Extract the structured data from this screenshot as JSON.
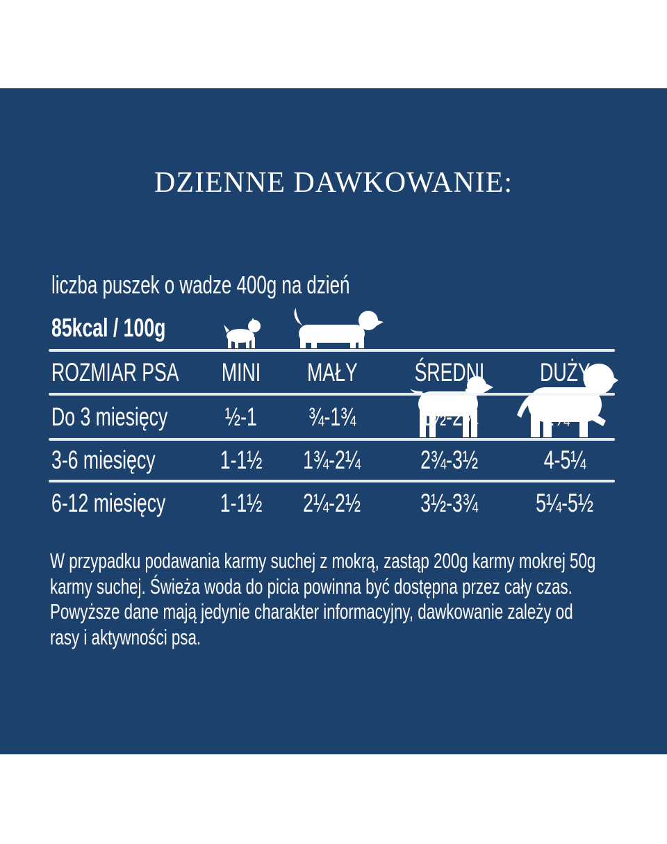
{
  "title": "DZIENNE DAWKOWANIE:",
  "subtitle": "liczba puszek o wadze 400g na dzień",
  "energy": "85kcal / 100g",
  "table": {
    "headers": [
      "ROZMIAR PSA",
      "MINI",
      "MAŁY",
      "ŚREDNI",
      "DUŻY"
    ],
    "rows": [
      [
        "Do 3 miesięcy",
        "½-1",
        "¾-1¾",
        "1½-2¾",
        "1¾-4"
      ],
      [
        "3-6 miesięcy",
        "1-1½",
        "1¾-2¼",
        "2¾-3½",
        "4-5¼"
      ],
      [
        "6-12 miesięcy",
        "1-1½",
        "2¼-2½",
        "3½-3¾",
        "5¼-5½"
      ]
    ]
  },
  "note_lines": [
    "W przypadku podawania karmy suchej z mokrą, zastąp 200g karmy mokrej 50g",
    "karmy suchej. Świeża woda do picia powinna być dostępna przez cały czas.",
    "Powyższe dane mają jedynie charakter informacyjny, dawkowanie zależy od",
    "rasy i aktywności psa."
  ],
  "icons": [
    "dog-mini-icon",
    "dog-small-icon",
    "dog-medium-icon",
    "dog-large-icon"
  ],
  "colors": {
    "background": "#1d416d",
    "text": "#ffffff"
  }
}
